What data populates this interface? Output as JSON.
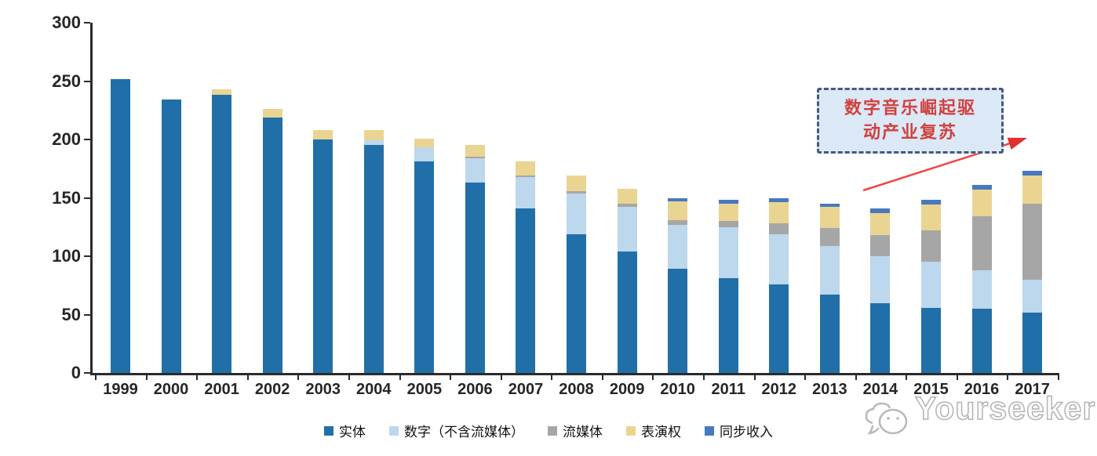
{
  "chart_data": {
    "type": "bar",
    "stacked": true,
    "categories": [
      "1999",
      "2000",
      "2001",
      "2002",
      "2003",
      "2004",
      "2005",
      "2006",
      "2007",
      "2008",
      "2009",
      "2010",
      "2011",
      "2012",
      "2013",
      "2014",
      "2015",
      "2016",
      "2017"
    ],
    "series": [
      {
        "key": "physical",
        "name": "实体",
        "color": "#216FA8",
        "values": [
          252,
          234,
          238,
          219,
          200,
          195,
          181,
          163,
          141,
          119,
          104,
          89,
          81,
          76,
          67,
          60,
          56,
          55,
          52
        ]
      },
      {
        "key": "digital-ex-streaming",
        "name": "数字（不含流媒体）",
        "color": "#BDD7EC",
        "values": [
          0,
          0,
          0,
          0,
          0,
          4,
          12,
          21,
          27,
          35,
          38,
          38,
          44,
          43,
          42,
          40,
          39,
          33,
          28
        ]
      },
      {
        "key": "streaming",
        "name": "流媒体",
        "color": "#A6A6A6",
        "values": [
          0,
          0,
          0,
          0,
          0,
          0,
          0,
          1,
          1,
          2,
          3,
          4,
          5,
          9,
          15,
          18,
          27,
          46,
          65
        ]
      },
      {
        "key": "performance-rights",
        "name": "表演权",
        "color": "#EAD492",
        "values": [
          0,
          0,
          5,
          7,
          8,
          9,
          8,
          10,
          12,
          13,
          13,
          16,
          15,
          18,
          18,
          19,
          22,
          23,
          24
        ]
      },
      {
        "key": "sync-revenue",
        "name": "同步收入",
        "color": "#4779BE",
        "values": [
          0,
          0,
          0,
          0,
          0,
          0,
          0,
          0,
          0,
          0,
          0,
          3,
          3,
          4,
          3,
          4,
          4,
          4,
          4
        ]
      }
    ],
    "ylim": [
      0,
      300
    ],
    "yticks": [
      "0",
      "50",
      "100",
      "150",
      "200",
      "250",
      "300"
    ],
    "grid": false,
    "legend_position": "bottom-center"
  },
  "annotation": {
    "line1": "数字音乐崛起驱",
    "line2": "动产业复苏",
    "text_color": "#D2403D",
    "box_fill": "#DBE8F6",
    "box_border": "#47597B",
    "arrow_color": "#EF4545"
  },
  "watermark": {
    "text": "Yourseeker",
    "logo": "chat-bubble-face-logo",
    "color": "#B3B3B3"
  },
  "axis": {
    "line_color": "#2B2B2B",
    "label_color": "#262626"
  }
}
